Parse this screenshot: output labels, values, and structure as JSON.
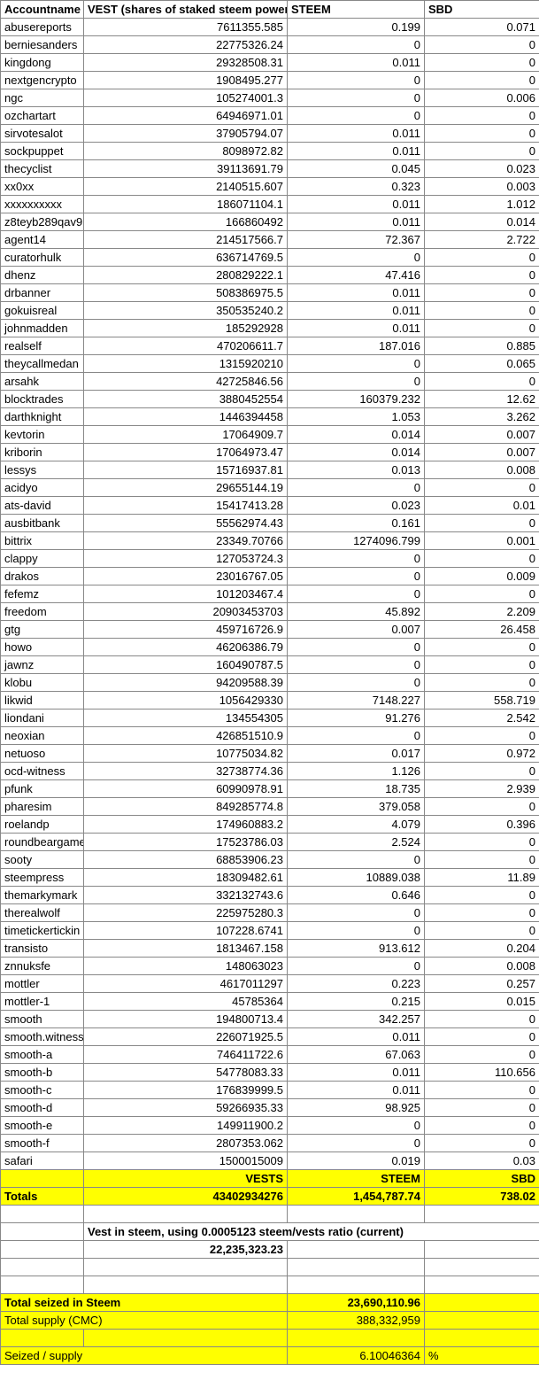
{
  "headers": {
    "accountname": "Accountname",
    "vest": "VEST (shares of staked steem power)",
    "steem": "STEEM",
    "sbd": "SBD"
  },
  "rows": [
    {
      "name": "abusereports",
      "vest": "7611355.585",
      "steem": "0.199",
      "sbd": "0.071"
    },
    {
      "name": "berniesanders",
      "vest": "22775326.24",
      "steem": "0",
      "sbd": "0"
    },
    {
      "name": "kingdong",
      "vest": "29328508.31",
      "steem": "0.011",
      "sbd": "0"
    },
    {
      "name": "nextgencrypto",
      "vest": "1908495.277",
      "steem": "0",
      "sbd": "0"
    },
    {
      "name": "ngc",
      "vest": "105274001.3",
      "steem": "0",
      "sbd": "0.006"
    },
    {
      "name": "ozchartart",
      "vest": "64946971.01",
      "steem": "0",
      "sbd": "0"
    },
    {
      "name": "sirvotesalot",
      "vest": "37905794.07",
      "steem": "0.011",
      "sbd": "0"
    },
    {
      "name": "sockpuppet",
      "vest": "8098972.82",
      "steem": "0.011",
      "sbd": "0"
    },
    {
      "name": "thecyclist",
      "vest": "39113691.79",
      "steem": "0.045",
      "sbd": "0.023"
    },
    {
      "name": "xx0xx",
      "vest": "2140515.607",
      "steem": "0.323",
      "sbd": "0.003"
    },
    {
      "name": "xxxxxxxxxx",
      "vest": "186071104.1",
      "steem": "0.011",
      "sbd": "1.012"
    },
    {
      "name": "z8teyb289qav9",
      "vest": "166860492",
      "steem": "0.011",
      "sbd": "0.014"
    },
    {
      "name": "agent14",
      "vest": "214517566.7",
      "steem": "72.367",
      "sbd": "2.722"
    },
    {
      "name": "curatorhulk",
      "vest": "636714769.5",
      "steem": "0",
      "sbd": "0"
    },
    {
      "name": "dhenz",
      "vest": "280829222.1",
      "steem": "47.416",
      "sbd": "0"
    },
    {
      "name": "drbanner",
      "vest": "508386975.5",
      "steem": "0.011",
      "sbd": "0"
    },
    {
      "name": "gokuisreal",
      "vest": "350535240.2",
      "steem": "0.011",
      "sbd": "0"
    },
    {
      "name": "johnmadden",
      "vest": "185292928",
      "steem": "0.011",
      "sbd": "0"
    },
    {
      "name": "realself",
      "vest": "470206611.7",
      "steem": "187.016",
      "sbd": "0.885"
    },
    {
      "name": "theycallmedan",
      "vest": "1315920210",
      "steem": "0",
      "sbd": "0.065"
    },
    {
      "name": "arsahk",
      "vest": "42725846.56",
      "steem": "0",
      "sbd": "0"
    },
    {
      "name": "blocktrades",
      "vest": "3880452554",
      "steem": "160379.232",
      "sbd": "12.62"
    },
    {
      "name": "darthknight",
      "vest": "1446394458",
      "steem": "1.053",
      "sbd": "3.262"
    },
    {
      "name": "kevtorin",
      "vest": "17064909.7",
      "steem": "0.014",
      "sbd": "0.007"
    },
    {
      "name": "kriborin",
      "vest": "17064973.47",
      "steem": "0.014",
      "sbd": "0.007"
    },
    {
      "name": "lessys",
      "vest": "15716937.81",
      "steem": "0.013",
      "sbd": "0.008"
    },
    {
      "name": "acidyo",
      "vest": "29655144.19",
      "steem": "0",
      "sbd": "0"
    },
    {
      "name": "ats-david",
      "vest": "15417413.28",
      "steem": "0.023",
      "sbd": "0.01"
    },
    {
      "name": "ausbitbank",
      "vest": "55562974.43",
      "steem": "0.161",
      "sbd": "0"
    },
    {
      "name": "bittrix",
      "vest": "23349.70766",
      "steem": "1274096.799",
      "sbd": "0.001"
    },
    {
      "name": "clappy",
      "vest": "127053724.3",
      "steem": "0",
      "sbd": "0"
    },
    {
      "name": "drakos",
      "vest": "23016767.05",
      "steem": "0",
      "sbd": "0.009"
    },
    {
      "name": "fefemz",
      "vest": "101203467.4",
      "steem": "0",
      "sbd": "0"
    },
    {
      "name": "freedom",
      "vest": "20903453703",
      "steem": "45.892",
      "sbd": "2.209"
    },
    {
      "name": "gtg",
      "vest": "459716726.9",
      "steem": "0.007",
      "sbd": "26.458"
    },
    {
      "name": "howo",
      "vest": "46206386.79",
      "steem": "0",
      "sbd": "0"
    },
    {
      "name": "jawnz",
      "vest": "160490787.5",
      "steem": "0",
      "sbd": "0"
    },
    {
      "name": "klobu",
      "vest": "94209588.39",
      "steem": "0",
      "sbd": "0"
    },
    {
      "name": "likwid",
      "vest": "1056429330",
      "steem": "7148.227",
      "sbd": "558.719"
    },
    {
      "name": "liondani",
      "vest": "134554305",
      "steem": "91.276",
      "sbd": "2.542"
    },
    {
      "name": "neoxian",
      "vest": "426851510.9",
      "steem": "0",
      "sbd": "0"
    },
    {
      "name": "netuoso",
      "vest": "10775034.82",
      "steem": "0.017",
      "sbd": "0.972"
    },
    {
      "name": "ocd-witness",
      "vest": "32738774.36",
      "steem": "1.126",
      "sbd": "0"
    },
    {
      "name": "pfunk",
      "vest": "60990978.91",
      "steem": "18.735",
      "sbd": "2.939"
    },
    {
      "name": "pharesim",
      "vest": "849285774.8",
      "steem": "379.058",
      "sbd": "0"
    },
    {
      "name": "roelandp",
      "vest": "174960883.2",
      "steem": "4.079",
      "sbd": "0.396"
    },
    {
      "name": "roundbeargames",
      "vest": "17523786.03",
      "steem": "2.524",
      "sbd": "0"
    },
    {
      "name": "sooty",
      "vest": "68853906.23",
      "steem": "0",
      "sbd": "0"
    },
    {
      "name": "steempress",
      "vest": "18309482.61",
      "steem": "10889.038",
      "sbd": "11.89"
    },
    {
      "name": "themarkymark",
      "vest": "332132743.6",
      "steem": "0.646",
      "sbd": "0"
    },
    {
      "name": "therealwolf",
      "vest": "225975280.3",
      "steem": "0",
      "sbd": "0"
    },
    {
      "name": "timetickertickin",
      "vest": "107228.6741",
      "steem": "0",
      "sbd": "0"
    },
    {
      "name": "transisto",
      "vest": "1813467.158",
      "steem": "913.612",
      "sbd": "0.204"
    },
    {
      "name": "znnuksfe",
      "vest": "148063023",
      "steem": "0",
      "sbd": "0.008"
    },
    {
      "name": "mottler",
      "vest": "4617011297",
      "steem": "0.223",
      "sbd": "0.257"
    },
    {
      "name": "mottler-1",
      "vest": "45785364",
      "steem": "0.215",
      "sbd": "0.015"
    },
    {
      "name": "smooth",
      "vest": "194800713.4",
      "steem": "342.257",
      "sbd": "0"
    },
    {
      "name": "smooth.witness",
      "vest": "226071925.5",
      "steem": "0.011",
      "sbd": "0"
    },
    {
      "name": "smooth-a",
      "vest": "746411722.6",
      "steem": "67.063",
      "sbd": "0"
    },
    {
      "name": "smooth-b",
      "vest": "54778083.33",
      "steem": "0.011",
      "sbd": "110.656"
    },
    {
      "name": "smooth-c",
      "vest": "176839999.5",
      "steem": "0.011",
      "sbd": "0"
    },
    {
      "name": "smooth-d",
      "vest": "59266935.33",
      "steem": "98.925",
      "sbd": "0"
    },
    {
      "name": "smooth-e",
      "vest": "149911900.2",
      "steem": "0",
      "sbd": "0"
    },
    {
      "name": "smooth-f",
      "vest": "2807353.062",
      "steem": "0",
      "sbd": "0"
    },
    {
      "name": "safari",
      "vest": "1500015009",
      "steem": "0.019",
      "sbd": "0.03"
    }
  ],
  "totals_header": {
    "vests": "VESTS",
    "steem": "STEEM",
    "sbd": "SBD"
  },
  "totals": {
    "label": "Totals",
    "vests": "43402934276",
    "steem": "1,454,787.74",
    "sbd": "738.02"
  },
  "ratio_label": "Vest in steem, using 0.0005123 steem/vests ratio (current)",
  "ratio_value": "22,235,323.23",
  "seized_label": "Total seized in Steem",
  "seized_value": "23,690,110.96",
  "supply_label": "Total supply (CMC)",
  "supply_value": "388,332,959",
  "seized_supply_label": "Seized / supply",
  "seized_supply_value": "6.10046364",
  "percent": "%"
}
